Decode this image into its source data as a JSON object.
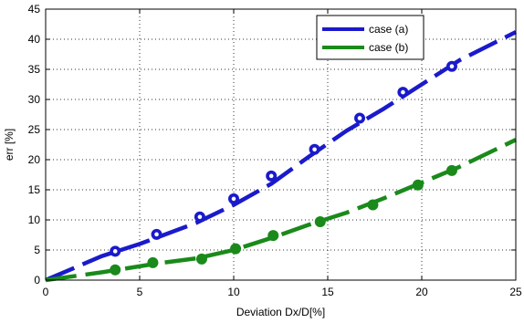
{
  "chart_data": {
    "type": "line",
    "title": "",
    "xlabel": "Deviation Dx/D[%]",
    "ylabel": "err [%]",
    "xlim": [
      0,
      25
    ],
    "ylim": [
      0,
      45
    ],
    "xticks": [
      0,
      5,
      10,
      15,
      20,
      25
    ],
    "yticks": [
      0,
      5,
      10,
      15,
      20,
      25,
      30,
      35,
      40,
      45
    ],
    "grid": true,
    "legend_position": "top-right",
    "series": [
      {
        "name": "case (a)",
        "color": "#1a1acc",
        "marker": "open-circle",
        "line": [
          [
            0,
            0
          ],
          [
            3,
            4
          ],
          [
            5,
            6
          ],
          [
            8,
            9.5
          ],
          [
            10,
            12.5
          ],
          [
            12,
            16
          ],
          [
            14,
            20.5
          ],
          [
            16,
            24.8
          ],
          [
            18,
            28.5
          ],
          [
            20,
            32.5
          ],
          [
            22,
            36.5
          ],
          [
            25,
            41.2
          ]
        ],
        "markers": [
          [
            3.7,
            4.8
          ],
          [
            5.9,
            7.6
          ],
          [
            8.2,
            10.5
          ],
          [
            10.0,
            13.5
          ],
          [
            12.0,
            17.3
          ],
          [
            14.3,
            21.7
          ],
          [
            16.7,
            26.9
          ],
          [
            19.0,
            31.2
          ],
          [
            21.6,
            35.5
          ]
        ]
      },
      {
        "name": "case (b)",
        "color": "#1a8a1a",
        "marker": "filled-circle",
        "line": [
          [
            0,
            0
          ],
          [
            3,
            1.3
          ],
          [
            6,
            2.8
          ],
          [
            8,
            3.6
          ],
          [
            10,
            5.0
          ],
          [
            12,
            7.0
          ],
          [
            14,
            9.2
          ],
          [
            16,
            11.2
          ],
          [
            18,
            13.6
          ],
          [
            20,
            16.2
          ],
          [
            22,
            18.8
          ],
          [
            25,
            23.3
          ]
        ],
        "markers": [
          [
            3.7,
            1.7
          ],
          [
            5.7,
            2.9
          ],
          [
            8.3,
            3.5
          ],
          [
            10.1,
            5.2
          ],
          [
            12.1,
            7.4
          ],
          [
            14.6,
            9.7
          ],
          [
            17.4,
            12.5
          ],
          [
            19.8,
            15.8
          ],
          [
            21.6,
            18.2
          ]
        ]
      }
    ]
  }
}
